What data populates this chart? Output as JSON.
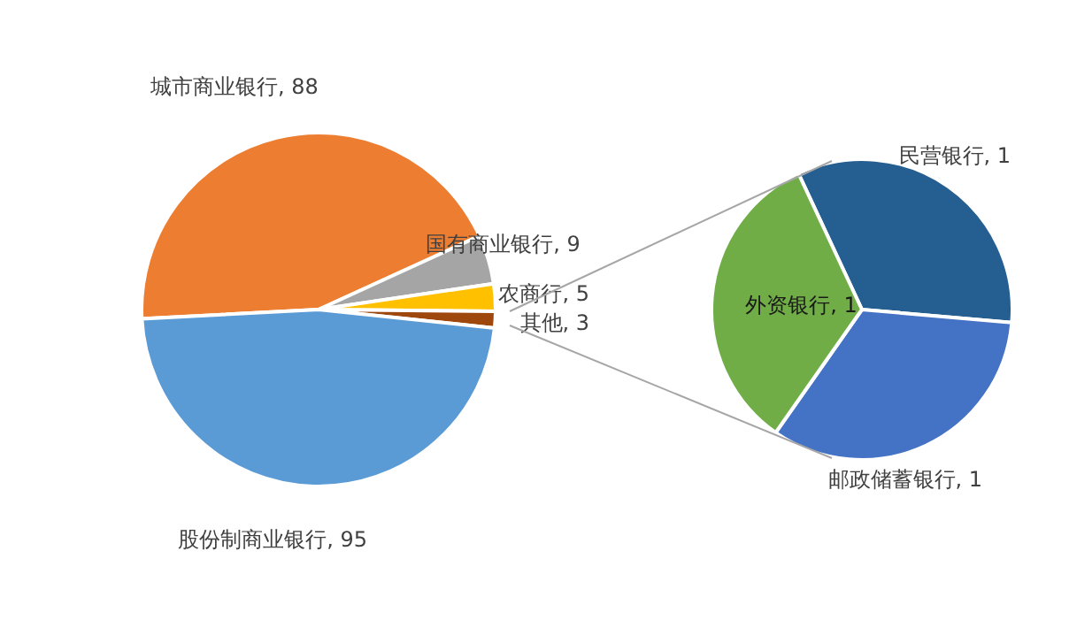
{
  "chart_data": [
    {
      "type": "pie",
      "categories": [
        "城市商业银行",
        "国有商业银行",
        "农商行",
        "其他",
        "股份制商业银行"
      ],
      "values": [
        88,
        9,
        5,
        3,
        95
      ],
      "colors": [
        "#ed7d31",
        "#a5a5a5",
        "#ffc000",
        "#9e480e",
        "#5b9bd5"
      ],
      "value_labels": [
        ", 88",
        ", 9",
        ", 5",
        ", 3",
        ", 95"
      ]
    },
    {
      "type": "pie",
      "categories": [
        "民营银行",
        "邮政储蓄银行",
        "外资银行"
      ],
      "values": [
        1,
        1,
        1
      ],
      "colors": [
        "#255e91",
        "#4472c4",
        "#70ad47"
      ],
      "value_labels": [
        ", 1",
        ", 1",
        ", 1"
      ]
    }
  ]
}
